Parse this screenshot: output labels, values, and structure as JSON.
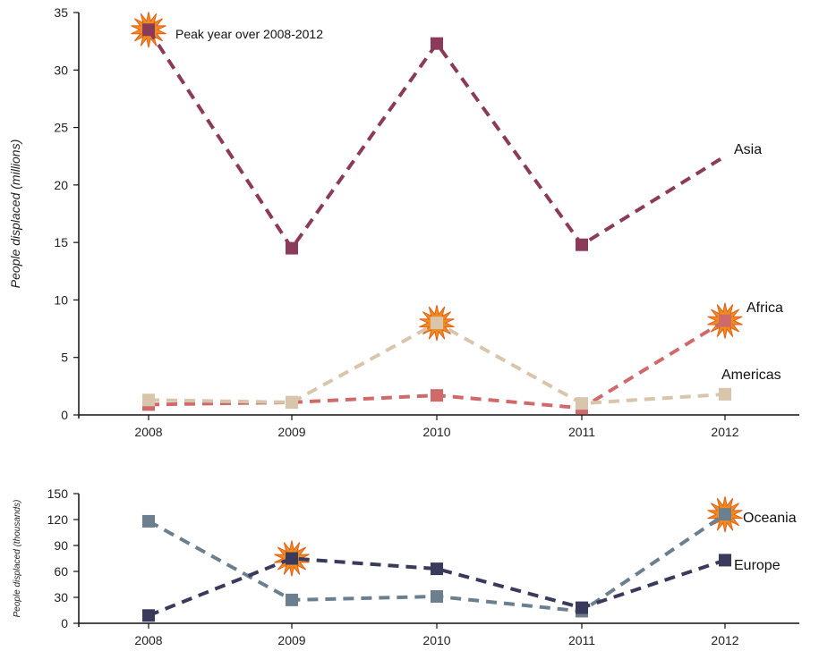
{
  "chart_data": [
    {
      "type": "line",
      "ylabel": "People displaced (millions)",
      "ylim": [
        0,
        35
      ],
      "yticks": [
        0,
        5,
        10,
        15,
        20,
        25,
        30,
        35
      ],
      "categories": [
        "2008",
        "2009",
        "2010",
        "2011",
        "2012"
      ],
      "series": [
        {
          "name": "Asia",
          "values": [
            33.5,
            14.5,
            32.3,
            14.8,
            22.5
          ],
          "color": "#8b3a5a",
          "markers": [
            true,
            true,
            true,
            true,
            false
          ],
          "peak": 0
        },
        {
          "name": "Africa",
          "values": [
            0.9,
            1.1,
            1.7,
            0.6,
            8.2
          ],
          "color": "#d06a6a",
          "markers": [
            true,
            true,
            true,
            true,
            true
          ],
          "peak": 4
        },
        {
          "name": "Americas",
          "values": [
            1.3,
            1.1,
            8.0,
            1.0,
            1.8
          ],
          "color": "#d8c5ab",
          "markers": [
            true,
            true,
            true,
            true,
            true
          ],
          "peak": 2
        }
      ],
      "annotation": "Peak year over 2008-2012"
    },
    {
      "type": "line",
      "ylabel": "People displaced (thousands)",
      "ylim": [
        0,
        150
      ],
      "yticks": [
        0,
        30,
        60,
        90,
        120,
        150
      ],
      "categories": [
        "2008",
        "2009",
        "2010",
        "2011",
        "2012"
      ],
      "series": [
        {
          "name": "Oceania",
          "values": [
            118,
            27,
            31,
            14,
            126
          ],
          "color": "#6b7f8f",
          "peak": 4
        },
        {
          "name": "Europe",
          "values": [
            9,
            75,
            63,
            18,
            73
          ],
          "color": "#3a3a5c",
          "peak": 1
        }
      ]
    }
  ],
  "colors": {
    "peak_star": "#f08c1e",
    "peak_star_outline": "#e0601a"
  }
}
